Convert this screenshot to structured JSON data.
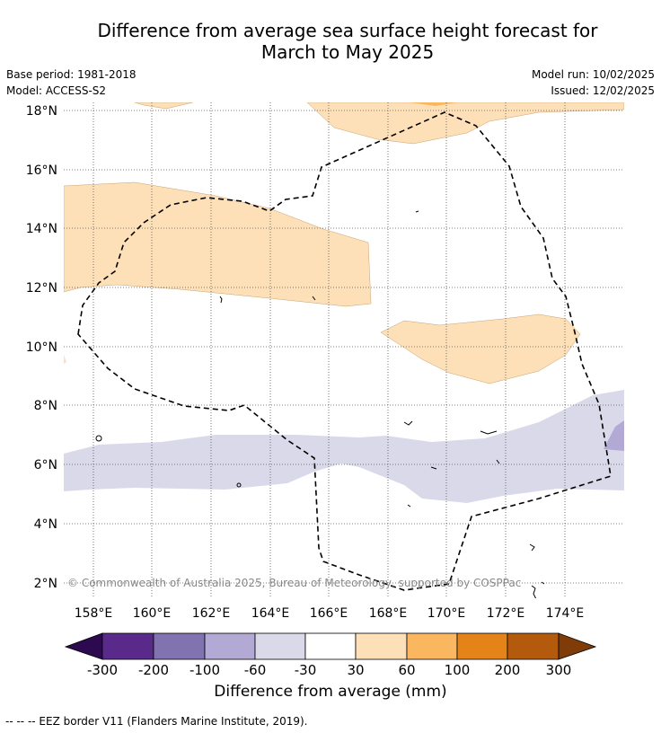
{
  "title": {
    "line1": "Difference from average sea surface height forecast for",
    "line2": "March to May 2025"
  },
  "meta": {
    "base_period": "Base period: 1981-2018",
    "model": "Model: ACCESS-S2",
    "model_run": "Model run: 10/02/2025",
    "issued": "Issued: 12/02/2025"
  },
  "map": {
    "lat_labels": [
      "18°N",
      "16°N",
      "14°N",
      "12°N",
      "10°N",
      "8°N",
      "6°N",
      "4°N",
      "2°N"
    ],
    "lon_labels": [
      "158°E",
      "160°E",
      "162°E",
      "164°E",
      "166°E",
      "168°E",
      "170°E",
      "172°E",
      "174°E"
    ],
    "copyright": "© Commonwealth of Australia 2025, Bureau of Meteorology, supported by COSPPac"
  },
  "colorbar": {
    "ticks": [
      "-300",
      "-200",
      "-100",
      "-60",
      "-30",
      "30",
      "60",
      "100",
      "200",
      "300"
    ],
    "colors": [
      "#2d0a4f",
      "#5a2a8a",
      "#8073b0",
      "#b2aad4",
      "#d9d9ea",
      "#ffffff",
      "#fde0b8",
      "#fbb760",
      "#e48418",
      "#b45a0c",
      "#7f3b08"
    ],
    "title": "Difference from average (mm)"
  },
  "footnote": "--  --  -- EEZ border V11 (Flanders Marine Institute, 2019)."
}
